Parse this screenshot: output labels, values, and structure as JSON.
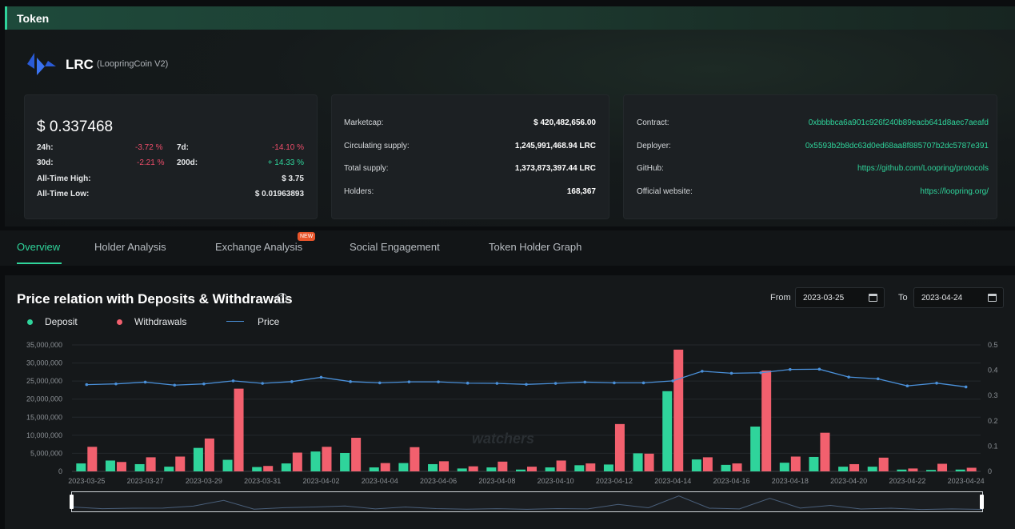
{
  "header": {
    "title": "Token"
  },
  "token": {
    "symbol": "LRC",
    "full_name": "(LoopringCoin V2)",
    "logo_icon": "loopring-logo-icon",
    "logo_color": "#2a5bd7"
  },
  "price_card": {
    "price": "$ 0.337468",
    "h24_label": "24h:",
    "h24_value": "-3.72 %",
    "d7_label": "7d:",
    "d7_value": "-14.10 %",
    "d30_label": "30d:",
    "d30_value": "-2.21 %",
    "d200_label": "200d:",
    "d200_value": "+ 14.33 %",
    "ath_label": "All-Time High:",
    "ath_value": "$ 3.75",
    "atl_label": "All-Time Low:",
    "atl_value": "$ 0.01963893"
  },
  "market_card": {
    "marketcap_label": "Marketcap:",
    "marketcap_value": "$ 420,482,656.00",
    "circ_label": "Circulating supply:",
    "circ_value": "1,245,991,468.94 LRC",
    "total_label": "Total supply:",
    "total_value": "1,373,873,397.44 LRC",
    "holders_label": "Holders:",
    "holders_value": "168,367"
  },
  "info_card": {
    "contract_label": "Contract:",
    "contract_value": "0xbbbbca6a901c926f240b89eacb641d8aec7aeafd",
    "deployer_label": "Deployer:",
    "deployer_value": "0x5593b2b8dc63d0ed68aa8f885707b2dc5787e391",
    "github_label": "GitHub:",
    "github_value": "https://github.com/Loopring/protocols",
    "website_label": "Official website:",
    "website_value": "https://loopring.org/"
  },
  "tabs": {
    "overview": "Overview",
    "holder": "Holder Analysis",
    "exchange": "Exchange Analysis",
    "exchange_badge": "NEW",
    "social": "Social Engagement",
    "graph": "Token Holder Graph",
    "active": "overview"
  },
  "section": {
    "title": "Price relation with Deposits & Withdrawals",
    "help_icon": "question-circle-icon",
    "from_label": "From",
    "from_value": "2023-03-25",
    "to_label": "To",
    "to_value": "2023-04-24",
    "calendar_icon": "calendar-icon",
    "watermark": "watchers"
  },
  "legend": {
    "deposit": "Deposit",
    "withdrawals": "Withdrawals",
    "price": "Price"
  },
  "colors": {
    "deposit": "#2fd49b",
    "withdrawals": "#f2606e",
    "price": "#4a90d9",
    "accent": "#2fd49b",
    "negative": "#ee4d6a"
  },
  "chart_data": {
    "type": "bar",
    "categories": [
      "2023-03-25",
      "2023-03-26",
      "2023-03-27",
      "2023-03-28",
      "2023-03-29",
      "2023-03-30",
      "2023-03-31",
      "2023-04-01",
      "2023-04-02",
      "2023-04-03",
      "2023-04-04",
      "2023-04-05",
      "2023-04-06",
      "2023-04-07",
      "2023-04-08",
      "2023-04-09",
      "2023-04-10",
      "2023-04-11",
      "2023-04-12",
      "2023-04-13",
      "2023-04-14",
      "2023-04-15",
      "2023-04-16",
      "2023-04-17",
      "2023-04-18",
      "2023-04-19",
      "2023-04-20",
      "2023-04-21",
      "2023-04-22",
      "2023-04-23",
      "2023-04-24"
    ],
    "x_tick_labels": [
      "2023-03-25",
      "2023-03-27",
      "2023-03-29",
      "2023-03-31",
      "2023-04-02",
      "2023-04-04",
      "2023-04-06",
      "2023-04-08",
      "2023-04-10",
      "2023-04-12",
      "2023-04-14",
      "2023-04-16",
      "2023-04-18",
      "2023-04-20",
      "2023-04-22",
      "2023-04-24"
    ],
    "series": [
      {
        "name": "Deposit",
        "axis": "left",
        "type": "bar",
        "values": [
          2200000,
          3000000,
          2000000,
          1300000,
          6500000,
          3200000,
          1200000,
          2200000,
          5500000,
          5100000,
          1100000,
          2300000,
          2000000,
          800000,
          1100000,
          500000,
          1100000,
          1700000,
          1900000,
          5000000,
          22200000,
          3300000,
          1800000,
          12400000,
          2400000,
          4000000,
          1300000,
          1300000,
          500000,
          400000,
          500000
        ]
      },
      {
        "name": "Withdrawals",
        "axis": "left",
        "type": "bar",
        "values": [
          6800000,
          2600000,
          3900000,
          4100000,
          9100000,
          22900000,
          1500000,
          5200000,
          6800000,
          9300000,
          2300000,
          6700000,
          2800000,
          1400000,
          2700000,
          1300000,
          3000000,
          2200000,
          13100000,
          4900000,
          33700000,
          3900000,
          2200000,
          27900000,
          4100000,
          10700000,
          2000000,
          3800000,
          800000,
          2100000,
          1000000
        ]
      },
      {
        "name": "Price",
        "axis": "right",
        "type": "line",
        "values": [
          0.343,
          0.346,
          0.353,
          0.341,
          0.346,
          0.358,
          0.348,
          0.355,
          0.372,
          0.355,
          0.35,
          0.354,
          0.354,
          0.349,
          0.348,
          0.344,
          0.348,
          0.353,
          0.35,
          0.35,
          0.358,
          0.396,
          0.388,
          0.39,
          0.403,
          0.404,
          0.373,
          0.366,
          0.338,
          0.349,
          0.334
        ]
      }
    ],
    "y_left": {
      "ticks": [
        "0",
        "5,000,000",
        "10,000,000",
        "15,000,000",
        "20,000,000",
        "25,000,000",
        "30,000,000",
        "35,000,000"
      ],
      "range": [
        0,
        35000000
      ]
    },
    "y_right": {
      "ticks": [
        "0",
        "0.1",
        "0.2",
        "0.3",
        "0.4",
        "0.5"
      ],
      "range": [
        0,
        0.5
      ]
    },
    "grid": true,
    "legend_placement": "top-left"
  }
}
